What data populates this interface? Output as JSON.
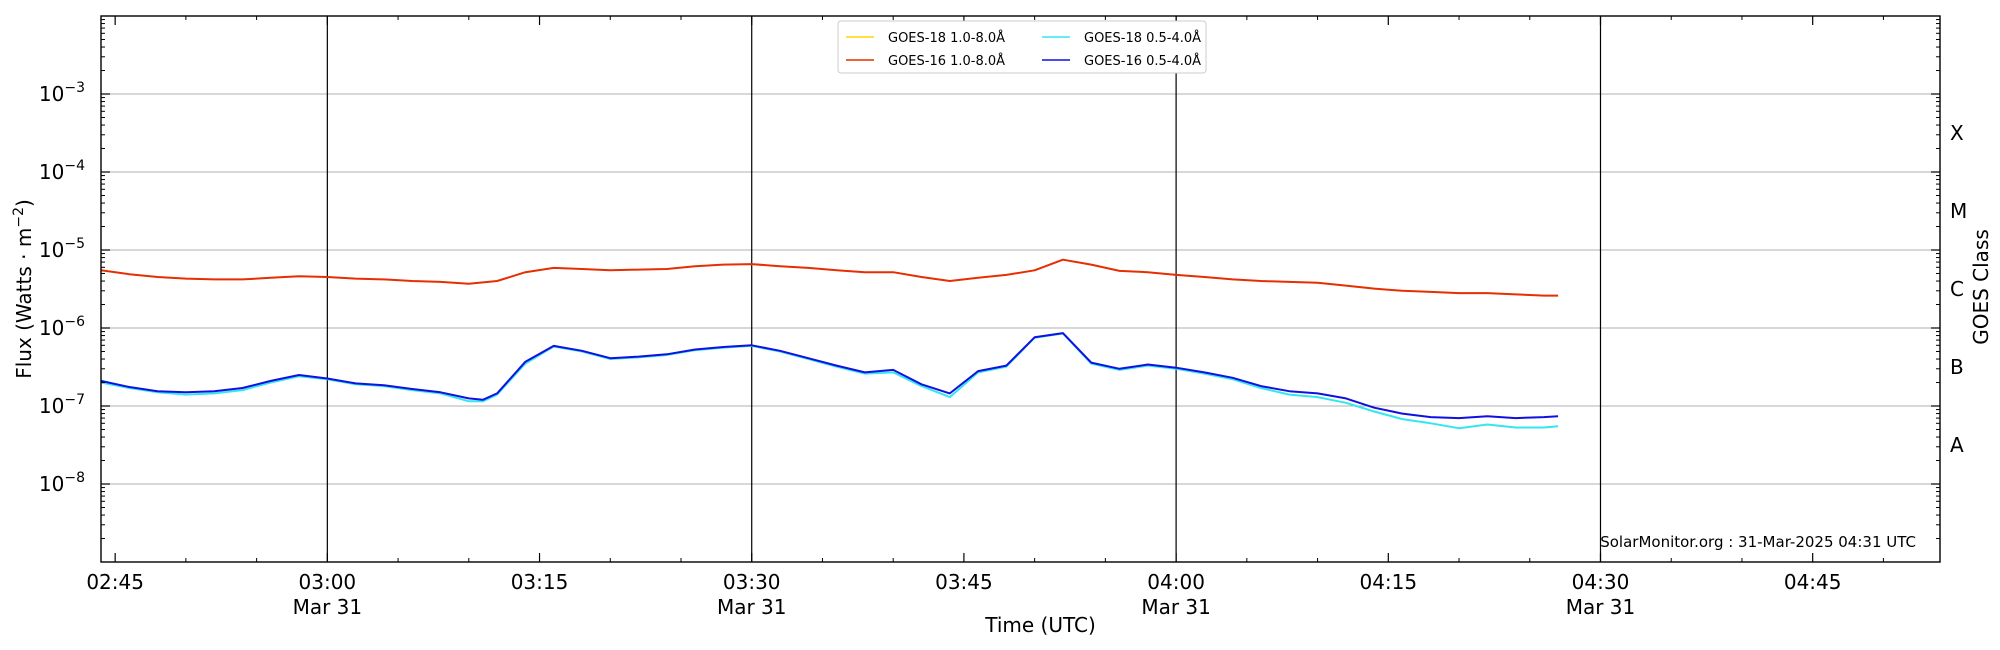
{
  "chart_data": {
    "type": "line",
    "ylabel_main": "Flux (Watts · m",
    "ylabel_exp": "−2",
    "ylabel_close": ")",
    "xlabel": "Time (UTC)",
    "y_right_label": "GOES Class",
    "y_scale": "log",
    "ylim": [
      1e-09,
      0.01
    ],
    "xlim": [
      "02:44",
      "04:54"
    ],
    "grid": "horizontal at decades",
    "legend_position": "top-center",
    "credit": "SolarMonitor.org : 31-Mar-2025 04:31 UTC",
    "y_ticks": [
      {
        "value": 1e-08,
        "base": "10",
        "exp": "−8"
      },
      {
        "value": 1e-07,
        "base": "10",
        "exp": "−7"
      },
      {
        "value": 1e-06,
        "base": "10",
        "exp": "−6"
      },
      {
        "value": 1e-05,
        "base": "10",
        "exp": "−5"
      },
      {
        "value": 0.0001,
        "base": "10",
        "exp": "−4"
      },
      {
        "value": 0.001,
        "base": "10",
        "exp": "−3"
      }
    ],
    "goes_classes": [
      {
        "label": "A",
        "value": 3.16e-08
      },
      {
        "label": "B",
        "value": 3.16e-07
      },
      {
        "label": "C",
        "value": 3.16e-06
      },
      {
        "label": "M",
        "value": 3.16e-05
      },
      {
        "label": "X",
        "value": 0.000316
      }
    ],
    "x_ticks": [
      {
        "time": "02:45",
        "label": "02:45",
        "date": ""
      },
      {
        "time": "03:00",
        "label": "03:00",
        "date": "Mar 31"
      },
      {
        "time": "03:15",
        "label": "03:15",
        "date": ""
      },
      {
        "time": "03:30",
        "label": "03:30",
        "date": "Mar 31"
      },
      {
        "time": "03:45",
        "label": "03:45",
        "date": ""
      },
      {
        "time": "04:00",
        "label": "04:00",
        "date": "Mar 31"
      },
      {
        "time": "04:15",
        "label": "04:15",
        "date": ""
      },
      {
        "time": "04:30",
        "label": "04:30",
        "date": "Mar 31"
      },
      {
        "time": "04:45",
        "label": "04:45",
        "date": ""
      }
    ],
    "vertical_lines": [
      "03:00",
      "03:30",
      "04:00",
      "04:30"
    ],
    "series": [
      {
        "name": "GOES-18 1.0-8.0Å",
        "color": "#ffd700",
        "points": []
      },
      {
        "name": "GOES-16 1.0-8.0Å",
        "color": "#e62e00",
        "points": [
          [
            "02:44",
            5.5e-06
          ],
          [
            "02:46",
            4.9e-06
          ],
          [
            "02:48",
            4.5e-06
          ],
          [
            "02:50",
            4.3e-06
          ],
          [
            "02:52",
            4.2e-06
          ],
          [
            "02:54",
            4.2e-06
          ],
          [
            "02:56",
            4.4e-06
          ],
          [
            "02:58",
            4.6e-06
          ],
          [
            "03:00",
            4.5e-06
          ],
          [
            "03:02",
            4.3e-06
          ],
          [
            "03:04",
            4.2e-06
          ],
          [
            "03:06",
            4e-06
          ],
          [
            "03:08",
            3.9e-06
          ],
          [
            "03:10",
            3.7e-06
          ],
          [
            "03:12",
            4e-06
          ],
          [
            "03:14",
            5.2e-06
          ],
          [
            "03:16",
            5.9e-06
          ],
          [
            "03:18",
            5.7e-06
          ],
          [
            "03:20",
            5.5e-06
          ],
          [
            "03:22",
            5.6e-06
          ],
          [
            "03:24",
            5.7e-06
          ],
          [
            "03:26",
            6.2e-06
          ],
          [
            "03:28",
            6.5e-06
          ],
          [
            "03:30",
            6.6e-06
          ],
          [
            "03:32",
            6.2e-06
          ],
          [
            "03:34",
            5.9e-06
          ],
          [
            "03:36",
            5.5e-06
          ],
          [
            "03:38",
            5.2e-06
          ],
          [
            "03:40",
            5.2e-06
          ],
          [
            "03:42",
            4.5e-06
          ],
          [
            "03:44",
            4e-06
          ],
          [
            "03:46",
            4.4e-06
          ],
          [
            "03:48",
            4.8e-06
          ],
          [
            "03:50",
            5.5e-06
          ],
          [
            "03:52",
            7.5e-06
          ],
          [
            "03:54",
            6.5e-06
          ],
          [
            "03:56",
            5.4e-06
          ],
          [
            "03:58",
            5.2e-06
          ],
          [
            "04:00",
            4.8e-06
          ],
          [
            "04:02",
            4.5e-06
          ],
          [
            "04:04",
            4.2e-06
          ],
          [
            "04:06",
            4e-06
          ],
          [
            "04:08",
            3.9e-06
          ],
          [
            "04:10",
            3.8e-06
          ],
          [
            "04:12",
            3.5e-06
          ],
          [
            "04:14",
            3.2e-06
          ],
          [
            "04:16",
            3e-06
          ],
          [
            "04:18",
            2.9e-06
          ],
          [
            "04:20",
            2.8e-06
          ],
          [
            "04:22",
            2.8e-06
          ],
          [
            "04:24",
            2.7e-06
          ],
          [
            "04:26",
            2.6e-06
          ],
          [
            "04:27",
            2.6e-06
          ]
        ]
      },
      {
        "name": "GOES-18 0.5-4.0Å",
        "color": "#33e6f0",
        "points": [
          [
            "02:44",
            2e-07
          ],
          [
            "02:46",
            1.7e-07
          ],
          [
            "02:48",
            1.5e-07
          ],
          [
            "02:50",
            1.4e-07
          ],
          [
            "02:52",
            1.45e-07
          ],
          [
            "02:54",
            1.6e-07
          ],
          [
            "02:56",
            2e-07
          ],
          [
            "02:58",
            2.4e-07
          ],
          [
            "03:00",
            2.2e-07
          ],
          [
            "03:02",
            1.9e-07
          ],
          [
            "03:04",
            1.8e-07
          ],
          [
            "03:06",
            1.6e-07
          ],
          [
            "03:08",
            1.45e-07
          ],
          [
            "03:10",
            1.15e-07
          ],
          [
            "03:11",
            1.15e-07
          ],
          [
            "03:12",
            1.4e-07
          ],
          [
            "03:14",
            3.5e-07
          ],
          [
            "03:16",
            5.8e-07
          ],
          [
            "03:18",
            5e-07
          ],
          [
            "03:20",
            4e-07
          ],
          [
            "03:22",
            4.2e-07
          ],
          [
            "03:24",
            4.5e-07
          ],
          [
            "03:26",
            5.2e-07
          ],
          [
            "03:28",
            5.6e-07
          ],
          [
            "03:30",
            5.9e-07
          ],
          [
            "03:32",
            5e-07
          ],
          [
            "03:34",
            4e-07
          ],
          [
            "03:36",
            3.2e-07
          ],
          [
            "03:38",
            2.6e-07
          ],
          [
            "03:40",
            2.7e-07
          ],
          [
            "03:42",
            1.8e-07
          ],
          [
            "03:44",
            1.3e-07
          ],
          [
            "03:46",
            2.7e-07
          ],
          [
            "03:48",
            3.2e-07
          ],
          [
            "03:50",
            7.5e-07
          ],
          [
            "03:52",
            8.5e-07
          ],
          [
            "03:54",
            3.5e-07
          ],
          [
            "03:56",
            2.9e-07
          ],
          [
            "03:58",
            3.3e-07
          ],
          [
            "04:00",
            3e-07
          ],
          [
            "04:02",
            2.6e-07
          ],
          [
            "04:04",
            2.2e-07
          ],
          [
            "04:06",
            1.7e-07
          ],
          [
            "04:08",
            1.4e-07
          ],
          [
            "04:10",
            1.3e-07
          ],
          [
            "04:12",
            1.1e-07
          ],
          [
            "04:14",
            8.5e-08
          ],
          [
            "04:16",
            6.8e-08
          ],
          [
            "04:18",
            6e-08
          ],
          [
            "04:20",
            5.2e-08
          ],
          [
            "04:22",
            5.8e-08
          ],
          [
            "04:24",
            5.3e-08
          ],
          [
            "04:26",
            5.3e-08
          ],
          [
            "04:27",
            5.5e-08
          ]
        ]
      },
      {
        "name": "GOES-16 0.5-4.0Å",
        "color": "#1010e0",
        "points": [
          [
            "02:44",
            2.1e-07
          ],
          [
            "02:46",
            1.75e-07
          ],
          [
            "02:48",
            1.55e-07
          ],
          [
            "02:50",
            1.5e-07
          ],
          [
            "02:52",
            1.55e-07
          ],
          [
            "02:54",
            1.7e-07
          ],
          [
            "02:56",
            2.1e-07
          ],
          [
            "02:58",
            2.5e-07
          ],
          [
            "03:00",
            2.25e-07
          ],
          [
            "03:02",
            1.95e-07
          ],
          [
            "03:04",
            1.85e-07
          ],
          [
            "03:06",
            1.65e-07
          ],
          [
            "03:08",
            1.5e-07
          ],
          [
            "03:10",
            1.25e-07
          ],
          [
            "03:11",
            1.2e-07
          ],
          [
            "03:12",
            1.45e-07
          ],
          [
            "03:14",
            3.7e-07
          ],
          [
            "03:16",
            5.9e-07
          ],
          [
            "03:18",
            5.1e-07
          ],
          [
            "03:20",
            4.1e-07
          ],
          [
            "03:22",
            4.3e-07
          ],
          [
            "03:24",
            4.6e-07
          ],
          [
            "03:26",
            5.3e-07
          ],
          [
            "03:28",
            5.7e-07
          ],
          [
            "03:30",
            6e-07
          ],
          [
            "03:32",
            5.1e-07
          ],
          [
            "03:34",
            4.1e-07
          ],
          [
            "03:36",
            3.3e-07
          ],
          [
            "03:38",
            2.7e-07
          ],
          [
            "03:40",
            2.9e-07
          ],
          [
            "03:42",
            1.9e-07
          ],
          [
            "03:44",
            1.45e-07
          ],
          [
            "03:46",
            2.8e-07
          ],
          [
            "03:48",
            3.3e-07
          ],
          [
            "03:50",
            7.6e-07
          ],
          [
            "03:52",
            8.6e-07
          ],
          [
            "03:54",
            3.6e-07
          ],
          [
            "03:56",
            3e-07
          ],
          [
            "03:58",
            3.4e-07
          ],
          [
            "04:00",
            3.1e-07
          ],
          [
            "04:02",
            2.7e-07
          ],
          [
            "04:04",
            2.3e-07
          ],
          [
            "04:06",
            1.8e-07
          ],
          [
            "04:08",
            1.55e-07
          ],
          [
            "04:10",
            1.45e-07
          ],
          [
            "04:12",
            1.25e-07
          ],
          [
            "04:14",
            9.5e-08
          ],
          [
            "04:16",
            8e-08
          ],
          [
            "04:18",
            7.2e-08
          ],
          [
            "04:20",
            7e-08
          ],
          [
            "04:22",
            7.4e-08
          ],
          [
            "04:24",
            7e-08
          ],
          [
            "04:26",
            7.2e-08
          ],
          [
            "04:27",
            7.4e-08
          ]
        ]
      }
    ]
  }
}
